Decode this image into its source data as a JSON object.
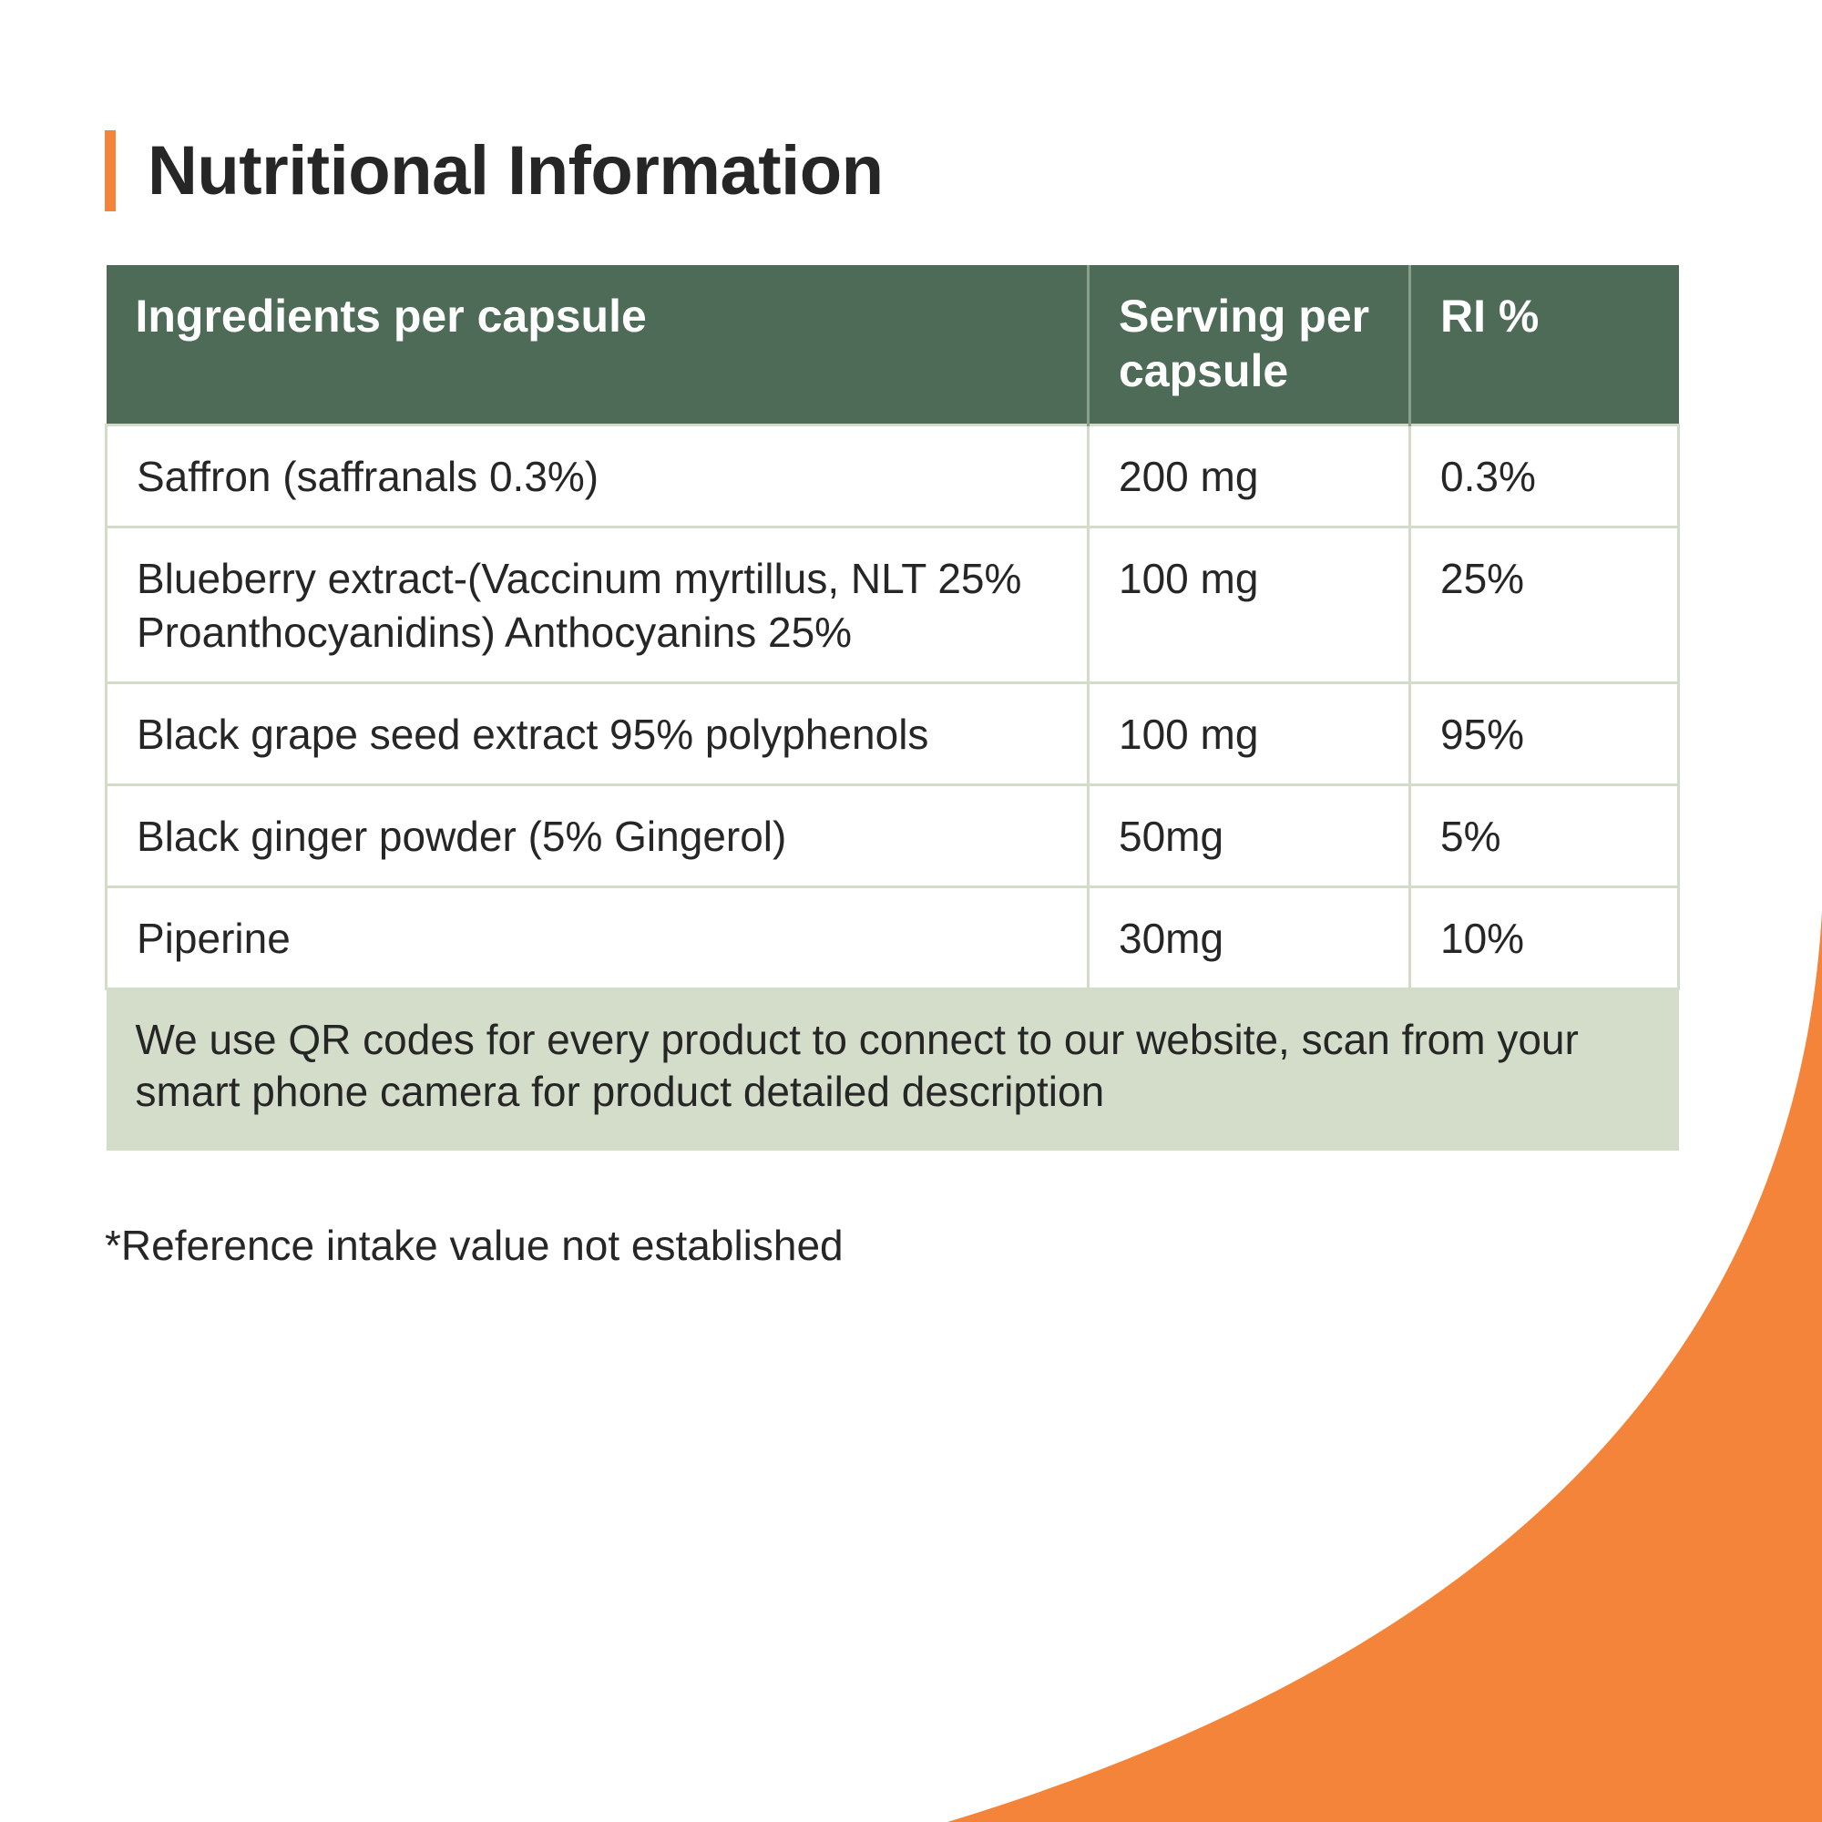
{
  "title": "Nutritional Information",
  "colors": {
    "accent": "#f4843a",
    "header_bg": "#4d6b57",
    "border": "#d3dcc8",
    "note_bg": "#d3ddc9",
    "text": "#262626"
  },
  "table": {
    "headers": [
      "Ingredients per capsule",
      "Serving per capsule",
      "RI %"
    ],
    "rows": [
      {
        "ingredient": "Saffron (saffranals 0.3%)",
        "serving": "200 mg",
        "ri": "0.3%"
      },
      {
        "ingredient": "Blueberry extract-(Vaccinum myrtillus, NLT 25% Proanthocyanidins) Anthocyanins 25%",
        "serving": "100 mg",
        "ri": "25%"
      },
      {
        "ingredient": "Black grape seed extract 95% polyphenols",
        "serving": "100 mg",
        "ri": "95%"
      },
      {
        "ingredient": "Black ginger powder (5% Gingerol)",
        "serving": "50mg",
        "ri": "5%"
      },
      {
        "ingredient": "Piperine",
        "serving": "30mg",
        "ri": "10%"
      }
    ],
    "note": "We use QR codes for every product to connect to our website, scan from your smart phone camera for product detailed description"
  },
  "footnote": "*Reference intake value not established"
}
